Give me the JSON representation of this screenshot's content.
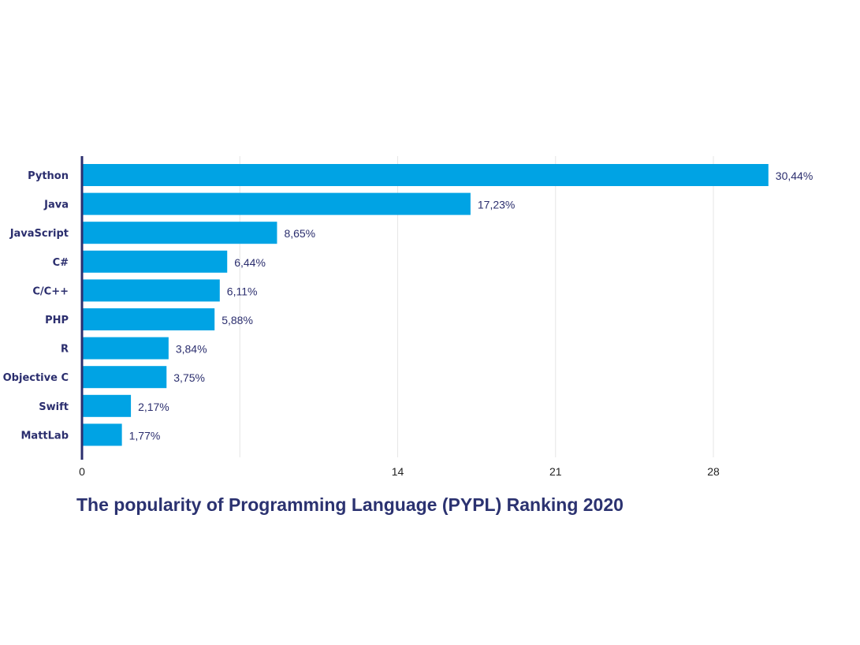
{
  "chart_data": {
    "type": "bar",
    "orientation": "horizontal",
    "title": "The popularity of Programming Language (PYPL) Ranking 2020",
    "xlabel": "",
    "ylabel": "",
    "categories": [
      "Python",
      "Java",
      "JavaScript",
      "C#",
      "C/C++",
      "PHP",
      "R",
      "Objective C",
      "Swift",
      "MattLab"
    ],
    "values": [
      30.44,
      17.23,
      8.65,
      6.44,
      6.11,
      5.88,
      3.84,
      3.75,
      2.17,
      1.77
    ],
    "data_labels": [
      "30,44%",
      "17,23%",
      "8,65%",
      "6,44%",
      "6,11%",
      "5,88%",
      "3,84%",
      "3,75%",
      "2,17%",
      "1,77%"
    ],
    "xticks": [
      0,
      7,
      14,
      21,
      28
    ],
    "xtick_labels": [
      "0",
      "",
      "14",
      "21",
      "28"
    ],
    "xlim": [
      0,
      32
    ],
    "grid": true,
    "legend": "none",
    "colors": {
      "bar": "#00a3e4",
      "axis": "#2b2e6e",
      "text": "#2b2e6e",
      "grid": "#e6e6e6"
    }
  }
}
